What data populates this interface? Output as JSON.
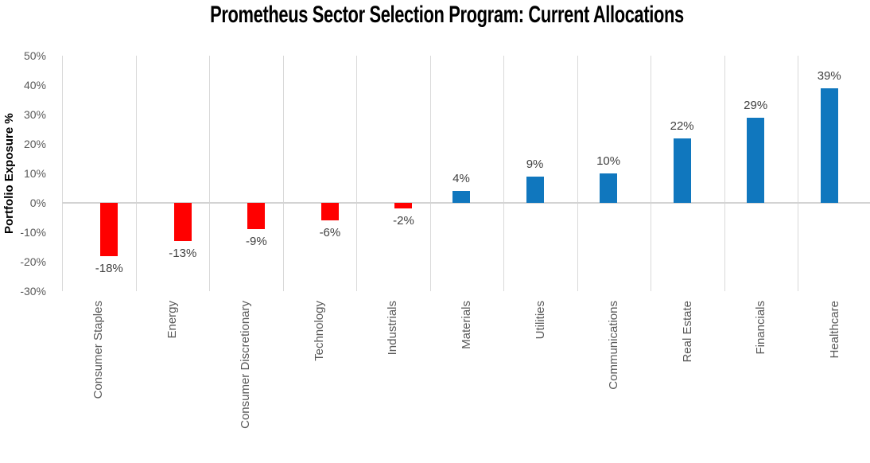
{
  "chart_data": {
    "type": "bar",
    "title": "Prometheus Sector Selection Program: Current Allocations",
    "xlabel": "",
    "ylabel": "Portfolio Exposure %",
    "categories": [
      "Consumer Staples",
      "Energy",
      "Consumer Discretionary",
      "Technology",
      "Industrials",
      "Materials",
      "Utilities",
      "Communications",
      "Real Estate",
      "Financials",
      "Healthcare"
    ],
    "values": [
      -18,
      -13,
      -9,
      -6,
      -2,
      4,
      9,
      10,
      22,
      29,
      39
    ],
    "data_labels": [
      "-18%",
      "-13%",
      "-9%",
      "-6%",
      "-2%",
      "4%",
      "9%",
      "10%",
      "22%",
      "29%",
      "39%"
    ],
    "y_ticks": [
      {
        "label": "50%",
        "value": 50
      },
      {
        "label": "40%",
        "value": 40
      },
      {
        "label": "30%",
        "value": 30
      },
      {
        "label": "20%",
        "value": 20
      },
      {
        "label": "10%",
        "value": 10
      },
      {
        "label": "0%",
        "value": 0
      },
      {
        "label": "-10%",
        "value": -10
      },
      {
        "label": "-20%",
        "value": -20
      },
      {
        "label": "-30%",
        "value": -30
      }
    ],
    "ylim": [
      -30,
      50
    ],
    "grid": "vertical-category-separators-only",
    "legend_position": "none",
    "colors": {
      "negative_bar": "#ff0000",
      "positive_bar": "#1077be",
      "gridline": "#d9d9d9",
      "zero_line": "#d3d3d3",
      "tick_text": "#595959",
      "data_label_text": "#404040",
      "title_text": "#000000"
    }
  }
}
